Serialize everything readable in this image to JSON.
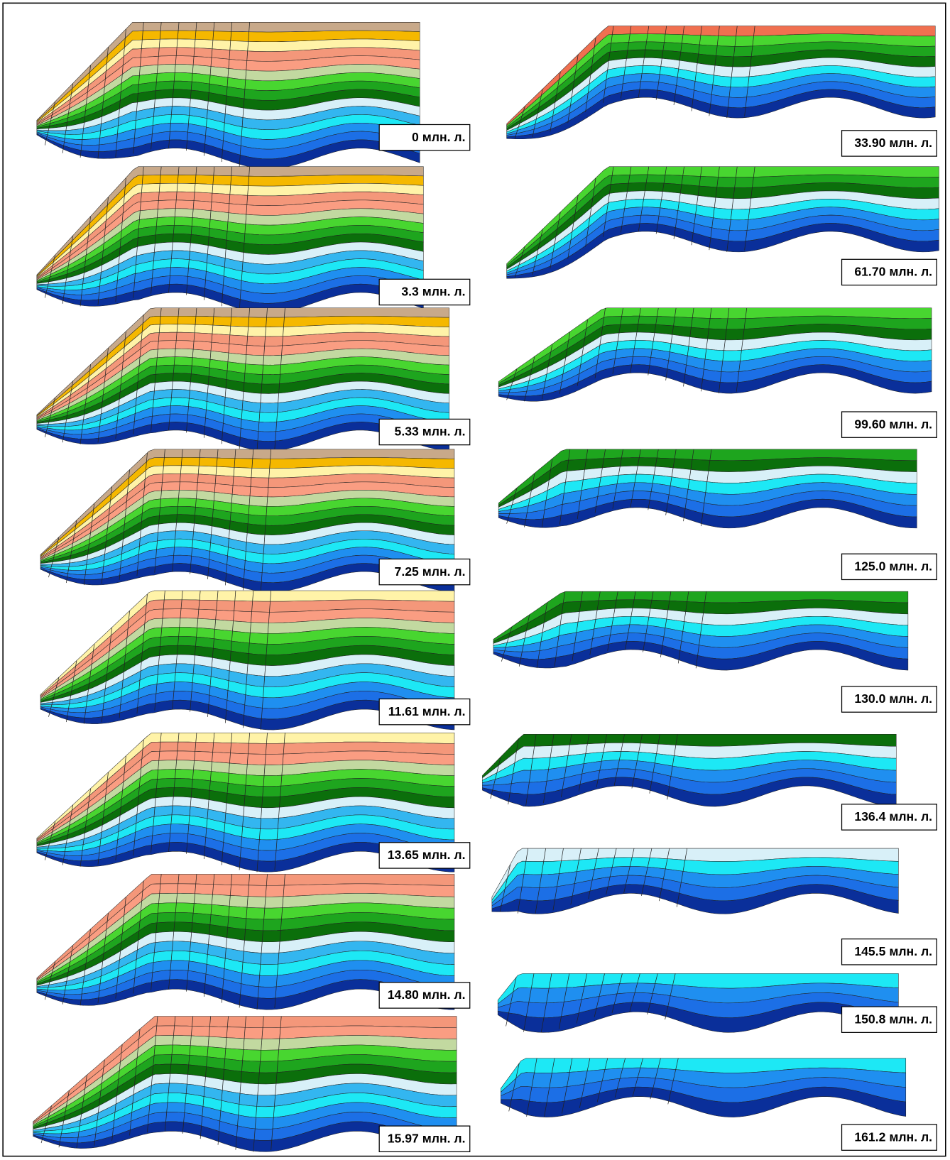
{
  "left_column": {
    "labels": [
      "0 млн. л.",
      "3.3 млн. л.",
      "5.33 млн. л.",
      "7.25 млн. л.",
      "11.61 млн. л.",
      "13.65 млн. л.",
      "14.80 млн. л.",
      "15.97 млн. л."
    ]
  },
  "right_column": {
    "labels": [
      "33.90 млн. л.",
      "61.70 млн. л.",
      "99.60 млн. л.",
      "125.0 млн. л.",
      "130.0 млн. л.",
      "136.4 млн. л.",
      "145.5 млн. л.",
      "150.8 млн. л.",
      "161.2 млн. л."
    ]
  }
}
